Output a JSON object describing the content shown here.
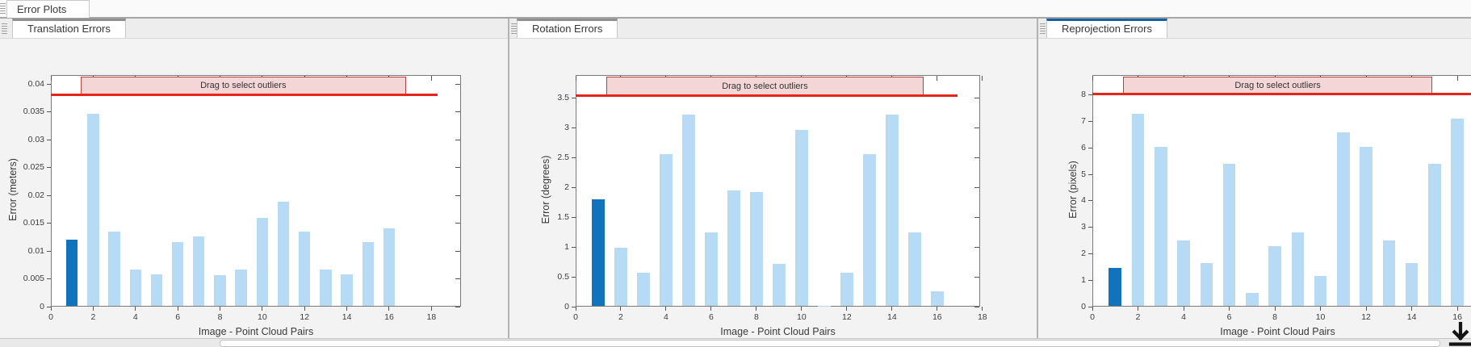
{
  "app": {
    "tab_label": "Error Plots"
  },
  "panels": [
    {
      "tab_label": "Translation Errors",
      "active": false
    },
    {
      "tab_label": "Rotation Errors",
      "active": false
    },
    {
      "tab_label": "Reprojection Errors",
      "active": true
    }
  ],
  "colors": {
    "bar": "#b7daf5",
    "bar_selected": "#1273bd",
    "threshold_line": "#e8231a",
    "band_fill": "#f5d6d6",
    "band_border": "#b6423d",
    "active_tab_accent": "#15619f",
    "inactive_tab_accent": "#8f8f8f"
  },
  "icons": {
    "corner": "export-down-arrow-icon",
    "tab_grip": "drag-grip-icon"
  },
  "chart_data": [
    {
      "type": "bar",
      "title": "Translation Errors",
      "xlabel": "Image - Point Cloud Pairs",
      "ylabel": "Error (meters)",
      "x": [
        1,
        2,
        3,
        4,
        5,
        6,
        7,
        8,
        9,
        10,
        11,
        12,
        13,
        14,
        15,
        16
      ],
      "values": [
        0.012,
        0.0346,
        0.0135,
        0.0066,
        0.0058,
        0.0116,
        0.0126,
        0.0056,
        0.0067,
        0.016,
        0.0188,
        0.0135,
        0.0066,
        0.0058,
        0.0116,
        0.014
      ],
      "selected_bar_x": 1,
      "xticks": [
        0,
        2,
        4,
        6,
        8,
        10,
        12,
        14,
        16,
        18
      ],
      "yticks": [
        0,
        0.005,
        0.01,
        0.015,
        0.02,
        0.025,
        0.03,
        0.035,
        0.04
      ],
      "ytick_labels": [
        "0",
        "0.005",
        "0.01",
        "0.015",
        "0.02",
        "0.025",
        "0.03",
        "0.035",
        "0.04"
      ],
      "xlim": [
        0,
        19.4
      ],
      "ylim": [
        0,
        0.0416
      ],
      "grid": false,
      "outlier_threshold": 0.0381,
      "threshold_line_end_x": 18.3,
      "drag_band": {
        "label": "Drag to select outliers",
        "x_start": 1.4,
        "x_end": 16.8
      }
    },
    {
      "type": "bar",
      "title": "Rotation Errors",
      "xlabel": "Image - Point Cloud Pairs",
      "ylabel": "Error (degrees)",
      "x": [
        1,
        2,
        3,
        4,
        5,
        6,
        7,
        8,
        9,
        10,
        11,
        12,
        13,
        14,
        15,
        16
      ],
      "values": [
        1.8,
        0.99,
        0.57,
        2.55,
        3.22,
        1.25,
        1.95,
        1.92,
        0.72,
        2.96,
        0.02,
        0.57,
        2.55,
        3.22,
        1.25,
        0.26
      ],
      "selected_bar_x": 1,
      "xticks": [
        0,
        2,
        4,
        6,
        8,
        10,
        12,
        14,
        16,
        18
      ],
      "yticks": [
        0,
        0.5,
        1,
        1.5,
        2,
        2.5,
        3,
        3.5
      ],
      "ytick_labels": [
        "0",
        "0.5",
        "1",
        "1.5",
        "2",
        "2.5",
        "3",
        "3.5"
      ],
      "xlim": [
        0,
        17.9
      ],
      "ylim": [
        0,
        3.88
      ],
      "grid": false,
      "outlier_threshold": 3.54,
      "threshold_line_end_x": 16.9,
      "drag_band": {
        "label": "Drag to select outliers",
        "x_start": 1.35,
        "x_end": 15.4
      }
    },
    {
      "type": "bar",
      "title": "Reprojection Errors",
      "xlabel": "Image - Point Cloud Pairs",
      "ylabel": "Error (pixels)",
      "x": [
        1,
        2,
        3,
        4,
        5,
        6,
        7,
        8,
        9,
        10,
        11,
        12,
        13,
        14,
        15,
        16
      ],
      "values": [
        1.45,
        7.3,
        6.05,
        2.5,
        1.65,
        5.4,
        0.52,
        2.3,
        2.8,
        1.15,
        6.6,
        6.05,
        2.5,
        1.65,
        5.4,
        7.1
      ],
      "selected_bar_x": 1,
      "xticks": [
        0,
        2,
        4,
        6,
        8,
        10,
        12,
        14,
        16
      ],
      "yticks": [
        0,
        1,
        2,
        3,
        4,
        5,
        6,
        7,
        8
      ],
      "ytick_labels": [
        "0",
        "1",
        "2",
        "3",
        "4",
        "5",
        "6",
        "7",
        "8"
      ],
      "xlim": [
        0,
        19.5
      ],
      "ylim": [
        0,
        8.76
      ],
      "grid": false,
      "outlier_threshold": 8.05,
      "threshold_line_end_x": 19.5,
      "drag_band": {
        "label": "Drag to select outliers",
        "x_start": 1.35,
        "x_end": 14.9
      }
    }
  ]
}
